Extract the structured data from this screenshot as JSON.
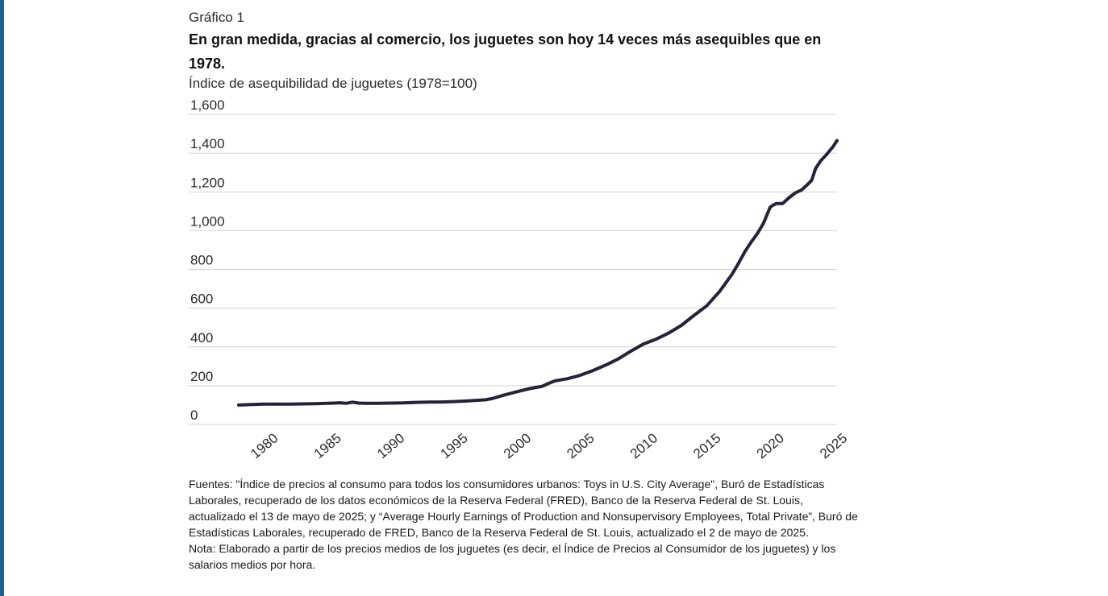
{
  "header": {
    "label": "Gráfico 1",
    "title": "En gran medida, gracias al comercio, los juguetes son hoy 14 veces más asequibles que en 1978.",
    "subtitle": "Índice de asequibilidad de juguetes (1978=100)"
  },
  "colors": {
    "line": "#25233a",
    "grid": "#d3d3d3",
    "accent_bar": "#1f5f8b"
  },
  "chart_data": {
    "type": "line",
    "title": "En gran medida, gracias al comercio, los juguetes son hoy 14 veces más asequibles que en 1978.",
    "ylabel": "Índice de asequibilidad de juguetes (1978=100)",
    "xlabel": "",
    "xlim": [
      1978,
      2025.3
    ],
    "ylim": [
      0,
      1600
    ],
    "x_ticks": [
      1980,
      1985,
      1990,
      1995,
      2000,
      2005,
      2010,
      2015,
      2020,
      2025
    ],
    "x_tick_labels": [
      "1980",
      "1985",
      "1990",
      "1995",
      "2000",
      "2005",
      "2010",
      "2015",
      "2020",
      "2025"
    ],
    "y_ticks": [
      0,
      200,
      400,
      600,
      800,
      1000,
      1200,
      1400,
      1600
    ],
    "y_tick_labels": [
      "0",
      "200",
      "400",
      "600",
      "800",
      "1,000",
      "1,200",
      "1,400",
      "1,600"
    ],
    "grid": true,
    "series": [
      {
        "name": "Índice de asequibilidad de juguetes",
        "x": [
          1978,
          1979,
          1980,
          1981,
          1982,
          1983,
          1984,
          1985,
          1985.5,
          1986,
          1986.5,
          1987,
          1987.5,
          1988,
          1989,
          1990,
          1991,
          1992,
          1993,
          1994,
          1995,
          1996,
          1997,
          1997.5,
          1998,
          1999,
          2000,
          2001,
          2002,
          2002.5,
          2003,
          2004,
          2005,
          2006,
          2007,
          2008,
          2009,
          2010,
          2011,
          2012,
          2013,
          2014,
          2015,
          2016,
          2016.5,
          2017,
          2017.5,
          2018,
          2018.5,
          2019,
          2019.5,
          2020,
          2020.2,
          2020.5,
          2021,
          2021.5,
          2022,
          2022.5,
          2023,
          2023.3,
          2023.6,
          2024,
          2024.5,
          2025,
          2025.3
        ],
        "values": [
          100,
          103,
          105,
          105,
          105,
          106,
          107,
          109,
          110,
          112,
          109,
          115,
          110,
          109,
          109,
          110,
          111,
          114,
          115,
          116,
          118,
          121,
          125,
          127,
          133,
          152,
          169,
          185,
          197,
          212,
          225,
          236,
          254,
          278,
          306,
          338,
          378,
          415,
          440,
          472,
          511,
          563,
          612,
          685,
          730,
          775,
          830,
          890,
          940,
          985,
          1040,
          1120,
          1130,
          1140,
          1140,
          1170,
          1195,
          1210,
          1240,
          1260,
          1320,
          1360,
          1395,
          1435,
          1465
        ]
      }
    ]
  },
  "footnotes": {
    "sources": "Fuentes: \"Índice de precios al consumo para todos los consumidores urbanos: Toys in U.S. City Average\", Buró de Estadísticas Laborales, recuperado de los datos económicos de la Reserva Federal (FRED), Banco de la Reserva Federal de St. Louis, actualizado el 13 de mayo de 2025; y “Average Hourly Earnings of Production and Nonsupervisory Employees, Total Private”, Buró de Estadísticas Laborales, recuperado de FRED, Banco de la Reserva Federal de St. Louis, actualizado el 2 de mayo de 2025.",
    "note": "Nota: Elaborado a partir de los precios medios de los juguetes (es decir, el Índice de Precios al Consumidor de los juguetes) y los salarios medios por hora."
  }
}
